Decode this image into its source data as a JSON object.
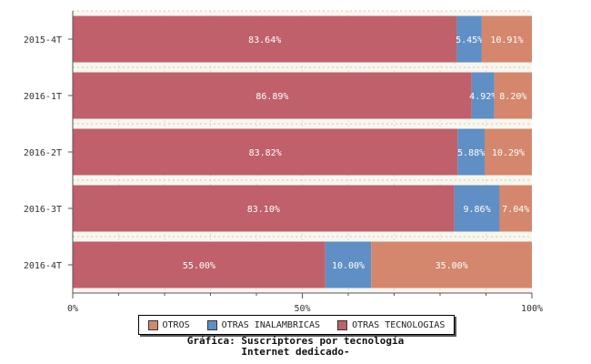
{
  "chart_data": {
    "type": "bar",
    "orientation": "horizontal",
    "stacked": true,
    "categories": [
      "2015-4T",
      "2016-1T",
      "2016-2T",
      "2016-3T",
      "2016-4T"
    ],
    "series": [
      {
        "name": "OTRAS TECNOLOGIAS",
        "color": "#c0606a",
        "values": [
          83.64,
          86.89,
          83.82,
          83.1,
          55.0
        ],
        "labels": [
          "83.64%",
          "86.89%",
          "83.82%",
          "83.10%",
          "55.00%"
        ]
      },
      {
        "name": "OTRAS INALAMBRICAS",
        "color": "#5f8fc4",
        "values": [
          5.45,
          4.92,
          5.88,
          9.86,
          10.0
        ],
        "labels": [
          "5.45%",
          "4.92%",
          "5.88%",
          "9.86%",
          "10.00%"
        ]
      },
      {
        "name": "OTROS",
        "color": "#d4876c",
        "values": [
          10.91,
          8.2,
          10.29,
          7.04,
          35.0
        ],
        "labels": [
          "10.91%",
          "8.20%",
          "10.29%",
          "7.04%",
          "35.00%"
        ]
      }
    ],
    "x_ticks": [
      "0%",
      "50%",
      "100%"
    ],
    "xlim": [
      0,
      100
    ],
    "legend": [
      "OTROS",
      "OTRAS INALAMBRICAS",
      "OTRAS TECNOLOGIAS"
    ],
    "legend_position": "bottom",
    "grid": true
  },
  "caption": {
    "line1": "Gráfica: Suscriptores por tecnología",
    "line2": "Internet dedicado-"
  },
  "legend_items": [
    {
      "label": "OTROS",
      "color": "#d4876c"
    },
    {
      "label": "OTRAS INALAMBRICAS",
      "color": "#5f8fc4"
    },
    {
      "label": "OTRAS TECNOLOGIAS",
      "color": "#c0606a"
    }
  ]
}
